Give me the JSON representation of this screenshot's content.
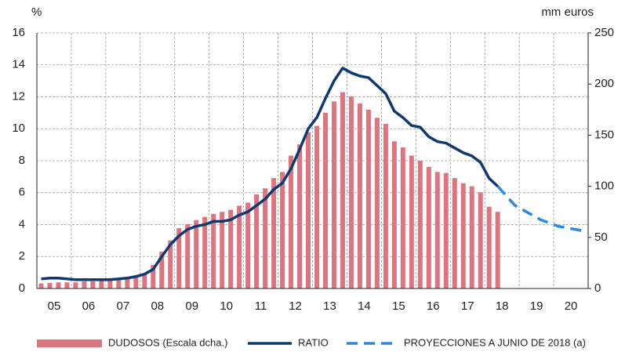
{
  "chart_data": {
    "type": "bar-line",
    "ylabel": "%",
    "y2label": "mm euros",
    "xlim": [
      5,
      21
    ],
    "xticks": [
      {
        "value": 5.5,
        "label": "05"
      },
      {
        "value": 6.5,
        "label": "06"
      },
      {
        "value": 7.5,
        "label": "07"
      },
      {
        "value": 8.5,
        "label": "08"
      },
      {
        "value": 9.5,
        "label": "09"
      },
      {
        "value": 10.5,
        "label": "10"
      },
      {
        "value": 11.5,
        "label": "11"
      },
      {
        "value": 12.5,
        "label": "12"
      },
      {
        "value": 13.5,
        "label": "13"
      },
      {
        "value": 14.5,
        "label": "14"
      },
      {
        "value": 15.5,
        "label": "15"
      },
      {
        "value": 16.5,
        "label": "16"
      },
      {
        "value": 17.5,
        "label": "17"
      },
      {
        "value": 18.5,
        "label": "18"
      },
      {
        "value": 19.5,
        "label": "19"
      },
      {
        "value": 20.5,
        "label": "20"
      }
    ],
    "ylim": [
      0,
      16
    ],
    "yticks": [
      0,
      2,
      4,
      6,
      8,
      10,
      12,
      14,
      16
    ],
    "y2lim": [
      0,
      250
    ],
    "y2ticks": [
      0,
      50,
      100,
      150,
      200,
      250
    ],
    "grid": true,
    "legend": "bottom",
    "series": [
      {
        "name": "DUDOSOS (Escala dcha.)",
        "type": "bar",
        "axis": "y2",
        "color": "#dc7580",
        "x": [
          5.125,
          5.375,
          5.625,
          5.875,
          6.125,
          6.375,
          6.625,
          6.875,
          7.125,
          7.375,
          7.625,
          7.875,
          8.125,
          8.375,
          8.625,
          8.875,
          9.125,
          9.375,
          9.625,
          9.875,
          10.125,
          10.375,
          10.625,
          10.875,
          11.125,
          11.375,
          11.625,
          11.875,
          12.125,
          12.375,
          12.625,
          12.875,
          13.125,
          13.375,
          13.625,
          13.875,
          14.125,
          14.375,
          14.625,
          14.875,
          15.125,
          15.375,
          15.625,
          15.875,
          16.125,
          16.375,
          16.625,
          16.875,
          17.125,
          17.375,
          17.625,
          17.875,
          18.125,
          18.375
        ],
        "values": [
          5,
          5.5,
          6,
          6,
          6,
          7,
          7,
          8,
          8,
          8.5,
          9,
          11,
          14,
          23,
          36,
          47,
          59,
          63,
          67,
          70,
          73,
          75,
          77,
          81,
          84,
          92,
          98,
          108,
          114,
          130,
          141,
          153,
          159,
          172,
          183,
          192,
          188,
          181,
          175,
          167,
          161,
          144,
          138,
          130,
          125,
          119,
          114,
          113,
          108,
          103,
          100,
          94,
          80,
          75
        ]
      },
      {
        "name": "RATIO",
        "type": "line",
        "axis": "y",
        "color": "#0e3a70",
        "x": [
          5.125,
          5.375,
          5.625,
          5.875,
          6.125,
          6.375,
          6.625,
          6.875,
          7.125,
          7.375,
          7.625,
          7.875,
          8.125,
          8.375,
          8.625,
          8.875,
          9.125,
          9.375,
          9.625,
          9.875,
          10.125,
          10.375,
          10.625,
          10.875,
          11.125,
          11.375,
          11.625,
          11.875,
          12.125,
          12.375,
          12.625,
          12.875,
          13.125,
          13.375,
          13.625,
          13.875,
          14.125,
          14.375,
          14.625,
          14.875,
          15.125,
          15.375,
          15.625,
          15.875,
          16.125,
          16.375,
          16.625,
          16.875,
          17.125,
          17.375,
          17.625,
          17.875,
          18.125,
          18.375
        ],
        "values": [
          0.6,
          0.65,
          0.65,
          0.6,
          0.55,
          0.55,
          0.55,
          0.55,
          0.55,
          0.6,
          0.65,
          0.75,
          0.9,
          1.2,
          2.0,
          2.75,
          3.3,
          3.7,
          3.9,
          4.0,
          4.2,
          4.2,
          4.3,
          4.6,
          4.8,
          5.2,
          5.6,
          6.2,
          6.6,
          7.5,
          8.7,
          10.0,
          10.7,
          11.9,
          13.0,
          13.8,
          13.5,
          13.3,
          13.2,
          12.7,
          12.2,
          11.1,
          10.7,
          10.2,
          10.1,
          9.5,
          9.2,
          9.1,
          8.8,
          8.5,
          8.3,
          7.9,
          6.9,
          6.4
        ]
      },
      {
        "name": "PROYECCIONES A JUNIO DE 2018 (a)",
        "type": "dashed-line",
        "axis": "y",
        "color": "#2b8ae6",
        "x": [
          18.375,
          18.625,
          18.875,
          19.125,
          19.375,
          19.625,
          19.875,
          20.125,
          20.375,
          20.625,
          20.875
        ],
        "values": [
          6.4,
          5.8,
          5.2,
          4.9,
          4.6,
          4.3,
          4.1,
          3.9,
          3.8,
          3.7,
          3.6
        ]
      }
    ]
  }
}
